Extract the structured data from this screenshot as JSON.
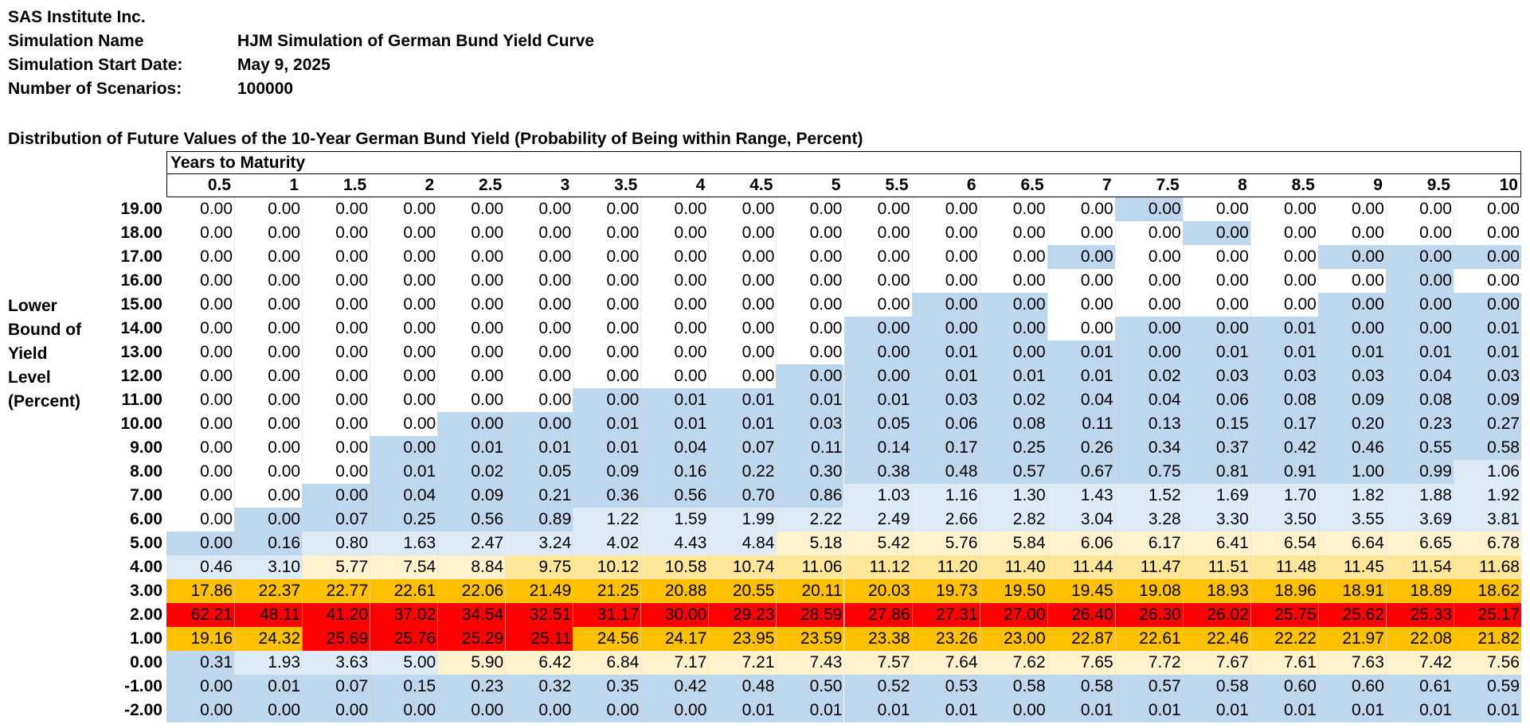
{
  "header": {
    "company": "SAS Institute Inc.",
    "simulation_name_label": "Simulation Name",
    "simulation_name": "HJM Simulation of German Bund Yield Curve",
    "start_date_label": "Simulation Start Date:",
    "start_date": "May 9, 2025",
    "scenarios_label": "Number of Scenarios:",
    "scenarios": "100000"
  },
  "table": {
    "title": "Distribution of Future Values of the 10-Year German Bund Yield (Probability of Being within Range, Percent)",
    "column_group_label": "Years to Maturity",
    "row_axis_label": [
      "Lower",
      "Bound of",
      "Yield",
      "Level",
      "(Percent)"
    ],
    "columns": [
      "0.5",
      "1",
      "1.5",
      "2",
      "2.5",
      "3",
      "3.5",
      "4",
      "4.5",
      "5",
      "5.5",
      "6",
      "6.5",
      "7",
      "7.5",
      "8",
      "8.5",
      "9",
      "9.5",
      "10"
    ],
    "rows": [
      "19.00",
      "18.00",
      "17.00",
      "16.00",
      "15.00",
      "14.00",
      "13.00",
      "12.00",
      "11.00",
      "10.00",
      "9.00",
      "8.00",
      "7.00",
      "6.00",
      "5.00",
      "4.00",
      "3.00",
      "2.00",
      "1.00",
      "0.00",
      "-1.00",
      "-2.00"
    ],
    "values": [
      [
        "0.00",
        "0.00",
        "0.00",
        "0.00",
        "0.00",
        "0.00",
        "0.00",
        "0.00",
        "0.00",
        "0.00",
        "0.00",
        "0.00",
        "0.00",
        "0.00",
        "0.00",
        "0.00",
        "0.00",
        "0.00",
        "0.00",
        "0.00"
      ],
      [
        "0.00",
        "0.00",
        "0.00",
        "0.00",
        "0.00",
        "0.00",
        "0.00",
        "0.00",
        "0.00",
        "0.00",
        "0.00",
        "0.00",
        "0.00",
        "0.00",
        "0.00",
        "0.00",
        "0.00",
        "0.00",
        "0.00",
        "0.00"
      ],
      [
        "0.00",
        "0.00",
        "0.00",
        "0.00",
        "0.00",
        "0.00",
        "0.00",
        "0.00",
        "0.00",
        "0.00",
        "0.00",
        "0.00",
        "0.00",
        "0.00",
        "0.00",
        "0.00",
        "0.00",
        "0.00",
        "0.00",
        "0.00"
      ],
      [
        "0.00",
        "0.00",
        "0.00",
        "0.00",
        "0.00",
        "0.00",
        "0.00",
        "0.00",
        "0.00",
        "0.00",
        "0.00",
        "0.00",
        "0.00",
        "0.00",
        "0.00",
        "0.00",
        "0.00",
        "0.00",
        "0.00",
        "0.00"
      ],
      [
        "0.00",
        "0.00",
        "0.00",
        "0.00",
        "0.00",
        "0.00",
        "0.00",
        "0.00",
        "0.00",
        "0.00",
        "0.00",
        "0.00",
        "0.00",
        "0.00",
        "0.00",
        "0.00",
        "0.00",
        "0.00",
        "0.00",
        "0.00"
      ],
      [
        "0.00",
        "0.00",
        "0.00",
        "0.00",
        "0.00",
        "0.00",
        "0.00",
        "0.00",
        "0.00",
        "0.00",
        "0.00",
        "0.00",
        "0.00",
        "0.00",
        "0.00",
        "0.00",
        "0.01",
        "0.00",
        "0.00",
        "0.01"
      ],
      [
        "0.00",
        "0.00",
        "0.00",
        "0.00",
        "0.00",
        "0.00",
        "0.00",
        "0.00",
        "0.00",
        "0.00",
        "0.00",
        "0.01",
        "0.00",
        "0.01",
        "0.00",
        "0.01",
        "0.01",
        "0.01",
        "0.01",
        "0.01"
      ],
      [
        "0.00",
        "0.00",
        "0.00",
        "0.00",
        "0.00",
        "0.00",
        "0.00",
        "0.00",
        "0.00",
        "0.00",
        "0.00",
        "0.01",
        "0.01",
        "0.01",
        "0.02",
        "0.03",
        "0.03",
        "0.03",
        "0.04",
        "0.03"
      ],
      [
        "0.00",
        "0.00",
        "0.00",
        "0.00",
        "0.00",
        "0.00",
        "0.00",
        "0.01",
        "0.01",
        "0.01",
        "0.01",
        "0.03",
        "0.02",
        "0.04",
        "0.04",
        "0.06",
        "0.08",
        "0.09",
        "0.08",
        "0.09"
      ],
      [
        "0.00",
        "0.00",
        "0.00",
        "0.00",
        "0.00",
        "0.00",
        "0.01",
        "0.01",
        "0.01",
        "0.03",
        "0.05",
        "0.06",
        "0.08",
        "0.11",
        "0.13",
        "0.15",
        "0.17",
        "0.20",
        "0.23",
        "0.27"
      ],
      [
        "0.00",
        "0.00",
        "0.00",
        "0.00",
        "0.01",
        "0.01",
        "0.01",
        "0.04",
        "0.07",
        "0.11",
        "0.14",
        "0.17",
        "0.25",
        "0.26",
        "0.34",
        "0.37",
        "0.42",
        "0.46",
        "0.55",
        "0.58"
      ],
      [
        "0.00",
        "0.00",
        "0.00",
        "0.01",
        "0.02",
        "0.05",
        "0.09",
        "0.16",
        "0.22",
        "0.30",
        "0.38",
        "0.48",
        "0.57",
        "0.67",
        "0.75",
        "0.81",
        "0.91",
        "1.00",
        "0.99",
        "1.06"
      ],
      [
        "0.00",
        "0.00",
        "0.00",
        "0.04",
        "0.09",
        "0.21",
        "0.36",
        "0.56",
        "0.70",
        "0.86",
        "1.03",
        "1.16",
        "1.30",
        "1.43",
        "1.52",
        "1.69",
        "1.70",
        "1.82",
        "1.88",
        "1.92"
      ],
      [
        "0.00",
        "0.00",
        "0.07",
        "0.25",
        "0.56",
        "0.89",
        "1.22",
        "1.59",
        "1.99",
        "2.22",
        "2.49",
        "2.66",
        "2.82",
        "3.04",
        "3.28",
        "3.30",
        "3.50",
        "3.55",
        "3.69",
        "3.81"
      ],
      [
        "0.00",
        "0.16",
        "0.80",
        "1.63",
        "2.47",
        "3.24",
        "4.02",
        "4.43",
        "4.84",
        "5.18",
        "5.42",
        "5.76",
        "5.84",
        "6.06",
        "6.17",
        "6.41",
        "6.54",
        "6.64",
        "6.65",
        "6.78"
      ],
      [
        "0.46",
        "3.10",
        "5.77",
        "7.54",
        "8.84",
        "9.75",
        "10.12",
        "10.58",
        "10.74",
        "11.06",
        "11.12",
        "11.20",
        "11.40",
        "11.44",
        "11.47",
        "11.51",
        "11.48",
        "11.45",
        "11.54",
        "11.68"
      ],
      [
        "17.86",
        "22.37",
        "22.77",
        "22.61",
        "22.06",
        "21.49",
        "21.25",
        "20.88",
        "20.55",
        "20.11",
        "20.03",
        "19.73",
        "19.50",
        "19.45",
        "19.08",
        "18.93",
        "18.96",
        "18.91",
        "18.89",
        "18.62"
      ],
      [
        "62.21",
        "48.11",
        "41.20",
        "37.02",
        "34.54",
        "32.51",
        "31.17",
        "30.00",
        "29.23",
        "28.59",
        "27.86",
        "27.31",
        "27.00",
        "26.40",
        "26.30",
        "26.02",
        "25.75",
        "25.62",
        "25.33",
        "25.17"
      ],
      [
        "19.16",
        "24.32",
        "25.69",
        "25.76",
        "25.29",
        "25.11",
        "24.56",
        "24.17",
        "23.95",
        "23.59",
        "23.38",
        "23.26",
        "23.00",
        "22.87",
        "22.61",
        "22.46",
        "22.22",
        "21.97",
        "22.08",
        "21.82"
      ],
      [
        "0.31",
        "1.93",
        "3.63",
        "5.00",
        "5.90",
        "6.42",
        "6.84",
        "7.17",
        "7.21",
        "7.43",
        "7.57",
        "7.64",
        "7.62",
        "7.65",
        "7.72",
        "7.67",
        "7.61",
        "7.63",
        "7.42",
        "7.56"
      ],
      [
        "0.00",
        "0.01",
        "0.07",
        "0.15",
        "0.23",
        "0.32",
        "0.35",
        "0.42",
        "0.48",
        "0.50",
        "0.52",
        "0.53",
        "0.58",
        "0.58",
        "0.57",
        "0.58",
        "0.60",
        "0.60",
        "0.61",
        "0.59"
      ],
      [
        "0.00",
        "0.00",
        "0.00",
        "0.00",
        "0.00",
        "0.00",
        "0.00",
        "0.00",
        "0.01",
        "0.01",
        "0.01",
        "0.01",
        "0.00",
        "0.01",
        "0.01",
        "0.01",
        "0.01",
        "0.01",
        "0.01",
        "0.01"
      ]
    ]
  },
  "shading": {
    "colors": {
      "white": "#ffffff",
      "blue": "#bdd7ee",
      "light_blue": "#ddebf7",
      "cream": "#fff2cc",
      "light_orange": "#ffe699",
      "orange": "#ffc000",
      "red": "#ff0000"
    },
    "bands": [
      "wwwwwwwwwwwwwwBwwwww",
      "wwwwwwwwwwwwwwwBwwww",
      "wwwwwwwwwwwwwBwwwBBB",
      "wwwwwwwwwwwwwwwwwwBw",
      "wwwwwwwwwwwBBwwwwBBB",
      "wwwwwwwwwwBBBwBBBBBB",
      "wwwwwwwwwwBBBBBBBBBB",
      "wwwwwwwwwBBBBBBBBBBB",
      "wwwwwwBBBBBBBBBBBBBB",
      "wwwwBBBBBBBBBBBBBBBB",
      "wwwBBBBBBBBBBBBBBBBB",
      "wwwBBBBBBBBBBBBBBBBL",
      "wwBBBBBBBBLLLLLLLLLL",
      "wBBBBBLLLLLLLLLLLLLL",
      "BBLLLLLLLCCCCCCCCCCC",
      "LLCCCOOOOOOOOOOOOOOO",
      "YYYYYYYYYYYYYYYYYYYY",
      "RRRRRRRRRRRRRRRRRRRR",
      "YYRRRRYYYYYYYYYYYYYY",
      "BLLLCCCCCCCCCCCCCCCC",
      "BBBBBBBBBBBBBBBBBBBB",
      "BBBBBBBBBBBBBBBBBBBB"
    ]
  }
}
